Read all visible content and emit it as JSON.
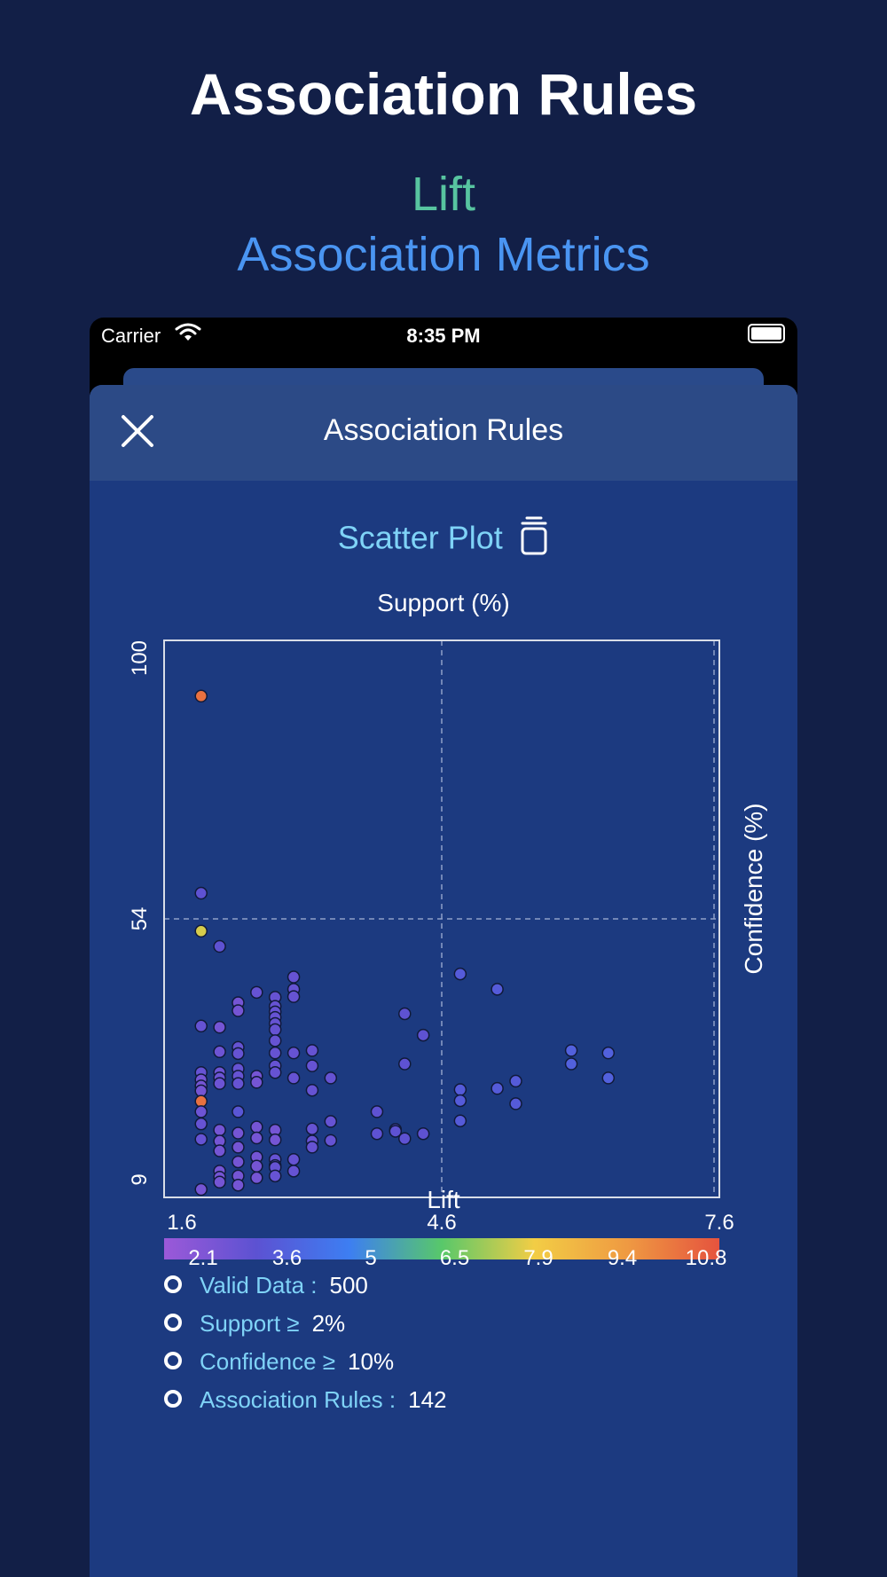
{
  "promo": {
    "title": "Association Rules",
    "subtitle1": "Lift",
    "subtitle2": "Association Metrics"
  },
  "status_bar": {
    "carrier": "Carrier",
    "time": "8:35 PM"
  },
  "sheet": {
    "title": "Association Rules",
    "close_icon": "close-icon",
    "plot_type_label": "Scatter Plot",
    "plot_type_icon": "trash-icon"
  },
  "colors": {
    "background": "#121f47",
    "sheet": "#1c3a80",
    "header": "#2c4a86",
    "accent_teal": "#57c4a0",
    "accent_blue": "#4a95f2",
    "label_cyan": "#7fd3f7"
  },
  "chart_data": {
    "type": "scatter",
    "title": "Support (%)",
    "xlabel": "Lift",
    "ylabel": "Confidence (%)",
    "xlim": [
      1.6,
      7.6
    ],
    "ylim": [
      9,
      100
    ],
    "x_ticks": [
      "1.6",
      "4.6",
      "7.6"
    ],
    "y_ticks": [
      "9",
      "54",
      "100"
    ],
    "grid": "dashed at midpoints",
    "colorbar": {
      "ticks": [
        "2.1",
        "3.6",
        "5",
        "6.5",
        "7.9",
        "9.4",
        "10.8"
      ],
      "min": 1.6,
      "max": 11.5,
      "colors": [
        "#9b59d8",
        "#5c52d2",
        "#3d7ef2",
        "#58c86a",
        "#f2cd45",
        "#ef9a42",
        "#e5533e"
      ]
    },
    "points": [
      [
        2.0,
        90.9,
        10.8
      ],
      [
        2.0,
        58.7,
        3.2
      ],
      [
        2.0,
        52.5,
        7.9
      ],
      [
        2.2,
        50.0,
        3.2
      ],
      [
        2.0,
        37.0,
        3.0
      ],
      [
        2.0,
        29.4,
        3.0
      ],
      [
        2.0,
        28.2,
        2.6
      ],
      [
        2.0,
        27.2,
        2.6
      ],
      [
        2.0,
        26.4,
        2.6
      ],
      [
        2.0,
        24.7,
        10.8
      ],
      [
        2.0,
        23.0,
        2.8
      ],
      [
        2.0,
        21.0,
        3.0
      ],
      [
        2.0,
        18.5,
        3.0
      ],
      [
        2.0,
        10.3,
        2.6
      ],
      [
        2.2,
        36.8,
        2.6
      ],
      [
        2.2,
        32.8,
        2.8
      ],
      [
        2.2,
        29.4,
        2.8
      ],
      [
        2.2,
        28.5,
        2.8
      ],
      [
        2.2,
        27.6,
        2.8
      ],
      [
        2.2,
        20.0,
        2.6
      ],
      [
        2.2,
        18.2,
        2.6
      ],
      [
        2.2,
        16.6,
        2.6
      ],
      [
        2.2,
        13.3,
        2.6
      ],
      [
        2.2,
        12.3,
        2.6
      ],
      [
        2.2,
        11.5,
        2.6
      ],
      [
        2.4,
        40.8,
        2.6
      ],
      [
        2.4,
        39.5,
        2.6
      ],
      [
        2.4,
        33.5,
        3.0
      ],
      [
        2.4,
        32.5,
        3.0
      ],
      [
        2.4,
        30.0,
        3.0
      ],
      [
        2.4,
        28.8,
        3.0
      ],
      [
        2.4,
        27.6,
        3.0
      ],
      [
        2.4,
        23.0,
        3.4
      ],
      [
        2.4,
        19.5,
        2.6
      ],
      [
        2.4,
        17.2,
        2.6
      ],
      [
        2.4,
        14.8,
        2.6
      ],
      [
        2.4,
        12.5,
        2.6
      ],
      [
        2.4,
        11.0,
        2.6
      ],
      [
        2.6,
        42.5,
        3.0
      ],
      [
        2.6,
        28.8,
        2.6
      ],
      [
        2.6,
        27.8,
        2.6
      ],
      [
        2.6,
        20.5,
        2.6
      ],
      [
        2.6,
        18.7,
        2.6
      ],
      [
        2.6,
        15.6,
        2.6
      ],
      [
        2.6,
        14.1,
        2.6
      ],
      [
        2.6,
        12.2,
        2.6
      ],
      [
        2.8,
        41.7,
        3.0
      ],
      [
        2.8,
        40.2,
        3.0
      ],
      [
        2.8,
        39.3,
        3.0
      ],
      [
        2.8,
        38.4,
        3.0
      ],
      [
        2.8,
        37.4,
        3.0
      ],
      [
        2.8,
        36.4,
        3.0
      ],
      [
        2.8,
        34.6,
        3.0
      ],
      [
        2.8,
        32.6,
        3.0
      ],
      [
        2.8,
        30.5,
        3.0
      ],
      [
        2.8,
        29.4,
        3.0
      ],
      [
        2.8,
        20.0,
        2.6
      ],
      [
        2.8,
        18.4,
        2.6
      ],
      [
        2.8,
        15.2,
        3.0
      ],
      [
        2.8,
        14.2,
        3.0
      ],
      [
        2.8,
        13.9,
        3.0
      ],
      [
        2.8,
        12.5,
        3.0
      ],
      [
        3.0,
        45.0,
        3.0
      ],
      [
        3.0,
        43.0,
        3.0
      ],
      [
        3.0,
        41.8,
        3.0
      ],
      [
        3.0,
        32.6,
        3.0
      ],
      [
        3.0,
        28.5,
        3.0
      ],
      [
        3.0,
        15.2,
        3.0
      ],
      [
        3.0,
        13.3,
        3.0
      ],
      [
        3.2,
        33.0,
        3.0
      ],
      [
        3.2,
        30.5,
        3.0
      ],
      [
        3.2,
        26.5,
        3.0
      ],
      [
        3.2,
        20.2,
        3.0
      ],
      [
        3.2,
        18.2,
        3.0
      ],
      [
        3.2,
        17.2,
        3.0
      ],
      [
        3.4,
        28.5,
        3.0
      ],
      [
        3.4,
        21.4,
        3.0
      ],
      [
        3.4,
        18.3,
        3.0
      ],
      [
        3.9,
        23.0,
        3.2
      ],
      [
        3.9,
        19.4,
        3.2
      ],
      [
        4.1,
        20.1,
        3.2
      ],
      [
        4.1,
        19.8,
        3.2
      ],
      [
        4.2,
        39.0,
        3.2
      ],
      [
        4.2,
        30.8,
        3.2
      ],
      [
        4.2,
        18.6,
        3.2
      ],
      [
        4.4,
        35.5,
        3.2
      ],
      [
        4.4,
        19.4,
        3.2
      ],
      [
        4.8,
        45.5,
        3.6
      ],
      [
        4.8,
        26.6,
        3.6
      ],
      [
        4.8,
        24.8,
        3.6
      ],
      [
        4.8,
        21.5,
        3.6
      ],
      [
        5.2,
        43.0,
        3.6
      ],
      [
        5.2,
        26.8,
        3.6
      ],
      [
        5.4,
        28.0,
        3.6
      ],
      [
        5.4,
        24.3,
        3.6
      ],
      [
        6.0,
        33.0,
        3.8
      ],
      [
        6.0,
        30.8,
        3.8
      ],
      [
        6.4,
        32.6,
        3.8
      ],
      [
        6.4,
        28.5,
        3.8
      ]
    ]
  },
  "legend": [
    {
      "label": "Valid Data :",
      "value": "500"
    },
    {
      "label": "Support ≥",
      "value": "2%"
    },
    {
      "label": "Confidence ≥",
      "value": "10%"
    },
    {
      "label": "Association Rules :",
      "value": "142"
    }
  ]
}
